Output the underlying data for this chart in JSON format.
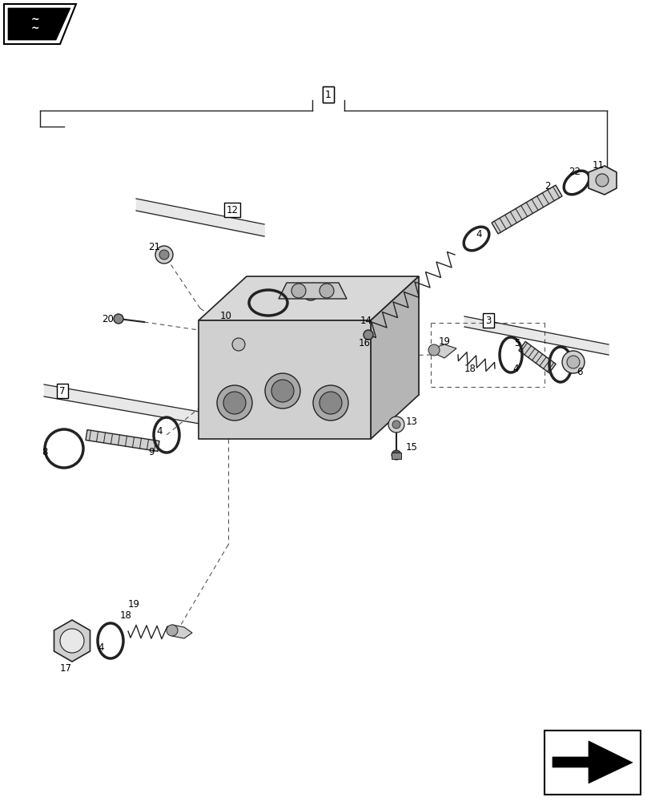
{
  "bg": "#ffffff",
  "lc": "#222222",
  "gray1": "#d0d0d0",
  "gray2": "#b8b8b8",
  "gray3": "#e8e8e8",
  "figsize": [
    8.08,
    10.0
  ],
  "dpi": 100
}
